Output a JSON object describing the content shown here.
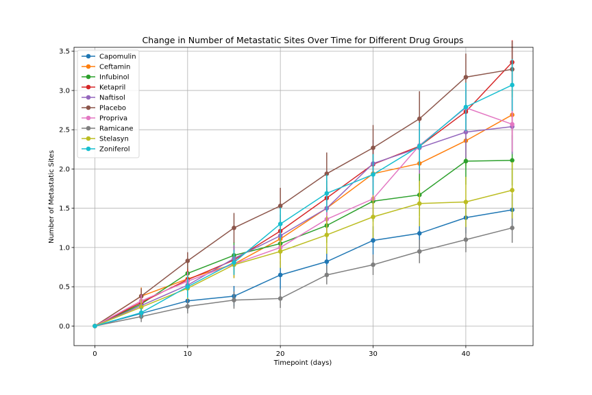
{
  "chart_data": {
    "type": "line",
    "title": "Change in Number of Metastatic Sites Over Time for Different Drug Groups",
    "xlabel": "Timepoint (days)",
    "ylabel": "Number of Metastatic Sites",
    "x": [
      0,
      5,
      10,
      15,
      20,
      25,
      30,
      35,
      40,
      45
    ],
    "xlim": [
      -2.25,
      47.25
    ],
    "ylim": [
      -0.25,
      3.55
    ],
    "xticks": [
      0,
      10,
      20,
      30,
      40
    ],
    "xtick_labels": [
      "0",
      "10",
      "20",
      "30",
      "40"
    ],
    "yticks": [
      0.0,
      0.5,
      1.0,
      1.5,
      2.0,
      2.5,
      3.0,
      3.5
    ],
    "ytick_labels": [
      "0.0",
      "0.5",
      "1.0",
      "1.5",
      "2.0",
      "2.5",
      "3.0",
      "3.5"
    ],
    "grid": true,
    "legend": "top-left",
    "markers": "circle",
    "error_bars": true,
    "series": [
      {
        "name": "Capomulin",
        "color": "#1f77b4",
        "values": [
          0,
          0.16,
          0.32,
          0.38,
          0.65,
          0.82,
          1.09,
          1.18,
          1.38,
          1.48
        ],
        "errors": [
          0,
          0.07,
          0.13,
          0.13,
          0.18,
          0.17,
          0.18,
          0.2,
          0.2,
          0.2
        ]
      },
      {
        "name": "Ceftamin",
        "color": "#ff7f0e",
        "values": [
          0,
          0.38,
          0.6,
          0.79,
          1.11,
          1.5,
          1.94,
          2.07,
          2.36,
          2.69
        ],
        "errors": [
          0,
          0.11,
          0.15,
          0.18,
          0.24,
          0.26,
          0.29,
          0.29,
          0.32,
          0.32
        ]
      },
      {
        "name": "Infubinol",
        "color": "#2ca02c",
        "values": [
          0,
          0.28,
          0.67,
          0.9,
          1.05,
          1.28,
          1.59,
          1.67,
          2.1,
          2.11
        ],
        "errors": [
          0,
          0.09,
          0.16,
          0.17,
          0.2,
          0.22,
          0.26,
          0.27,
          0.3,
          0.32
        ]
      },
      {
        "name": "Ketapril",
        "color": "#d62728",
        "values": [
          0,
          0.3,
          0.59,
          0.84,
          1.21,
          1.63,
          2.06,
          2.29,
          2.73,
          3.36
        ],
        "errors": [
          0,
          0.1,
          0.14,
          0.18,
          0.21,
          0.22,
          0.23,
          0.24,
          0.27,
          0.28
        ]
      },
      {
        "name": "Naftisol",
        "color": "#9467bd",
        "values": [
          0,
          0.26,
          0.52,
          0.86,
          1.15,
          1.5,
          2.07,
          2.27,
          2.47,
          2.54
        ],
        "errors": [
          0,
          0.1,
          0.13,
          0.17,
          0.22,
          0.27,
          0.3,
          0.33,
          0.33,
          0.35
        ]
      },
      {
        "name": "Placebo",
        "color": "#8c564b",
        "values": [
          0,
          0.38,
          0.83,
          1.25,
          1.53,
          1.94,
          2.27,
          2.64,
          3.17,
          3.27
        ],
        "errors": [
          0,
          0.1,
          0.11,
          0.19,
          0.23,
          0.27,
          0.29,
          0.35,
          0.3,
          0.36
        ]
      },
      {
        "name": "Propriva",
        "color": "#e377c2",
        "values": [
          0,
          0.32,
          0.57,
          0.79,
          1.0,
          1.36,
          1.62,
          2.3,
          2.78,
          2.57
        ],
        "errors": [
          0,
          0.08,
          0.12,
          0.17,
          0.21,
          0.24,
          0.26,
          0.28,
          0.31,
          0.35
        ]
      },
      {
        "name": "Ramicane",
        "color": "#7f7f7f",
        "values": [
          0,
          0.12,
          0.25,
          0.33,
          0.35,
          0.65,
          0.78,
          0.95,
          1.1,
          1.25
        ],
        "errors": [
          0,
          0.07,
          0.09,
          0.11,
          0.12,
          0.12,
          0.13,
          0.15,
          0.16,
          0.19
        ]
      },
      {
        "name": "Stelasyn",
        "color": "#bcbd22",
        "values": [
          0,
          0.24,
          0.48,
          0.78,
          0.95,
          1.16,
          1.39,
          1.56,
          1.58,
          1.73
        ],
        "errors": [
          0,
          0.1,
          0.14,
          0.17,
          0.21,
          0.24,
          0.27,
          0.29,
          0.32,
          0.36
        ]
      },
      {
        "name": "Zoniferol",
        "color": "#17becf",
        "values": [
          0,
          0.17,
          0.5,
          0.81,
          1.3,
          1.69,
          1.93,
          2.29,
          2.79,
          3.07
        ],
        "errors": [
          0,
          0.06,
          0.14,
          0.16,
          0.21,
          0.24,
          0.26,
          0.3,
          0.31,
          0.33
        ]
      }
    ]
  }
}
